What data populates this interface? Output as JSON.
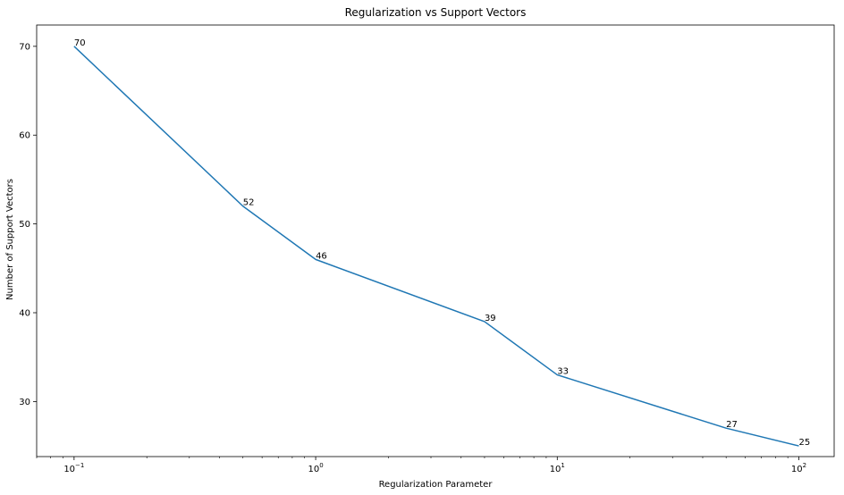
{
  "chart_data": {
    "type": "line",
    "title": "Regularization vs Support Vectors",
    "xlabel": "Regularization Parameter",
    "ylabel": "Number of Support Vectors",
    "x_scale": "log",
    "xlim": [
      0.07,
      140
    ],
    "ylim": [
      23.8,
      72.4
    ],
    "x_ticks": [
      {
        "value": 0.1,
        "base": "10",
        "exp": "−1"
      },
      {
        "value": 1,
        "base": "10",
        "exp": "0"
      },
      {
        "value": 10,
        "base": "10",
        "exp": "1"
      },
      {
        "value": 100,
        "base": "10",
        "exp": "2"
      }
    ],
    "y_ticks": [
      30,
      40,
      50,
      60,
      70
    ],
    "grid": false,
    "series": [
      {
        "color": "#1f77b4",
        "x": [
          0.1,
          0.5,
          1,
          5,
          10,
          50,
          100
        ],
        "y": [
          70,
          52,
          46,
          39,
          33,
          27,
          25
        ],
        "labels": [
          "70",
          "52",
          "46",
          "39",
          "33",
          "27",
          "25"
        ]
      }
    ]
  }
}
